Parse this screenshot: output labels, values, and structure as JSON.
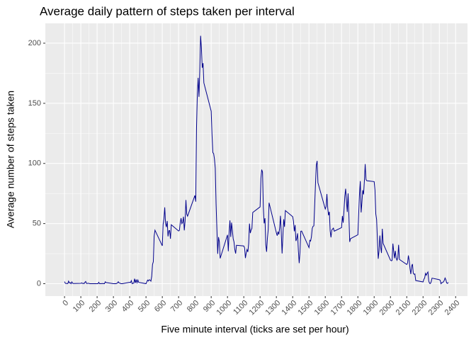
{
  "chart_data": {
    "type": "line",
    "title": "Average daily pattern of steps taken per interval",
    "x_label": "Five minute interval (ticks are set per hour)",
    "y_label": "Average number of steps taken",
    "color": "#00008B",
    "grid": true,
    "xlim": [
      -117.75,
      2472.75
    ],
    "ylim": [
      -10.31,
      216.48
    ],
    "xticks": [
      0,
      100,
      200,
      300,
      400,
      500,
      600,
      700,
      800,
      900,
      1000,
      1100,
      1200,
      1300,
      1400,
      1500,
      1600,
      1700,
      1800,
      1900,
      2000,
      2100,
      2200,
      2300,
      2400
    ],
    "yticks": [
      0,
      50,
      100,
      150,
      200
    ],
    "x": [
      0,
      5,
      10,
      15,
      20,
      25,
      30,
      35,
      40,
      45,
      50,
      55,
      100,
      105,
      110,
      115,
      120,
      125,
      130,
      135,
      140,
      145,
      150,
      155,
      200,
      205,
      210,
      215,
      220,
      225,
      230,
      235,
      240,
      245,
      250,
      255,
      300,
      305,
      310,
      315,
      320,
      325,
      330,
      335,
      340,
      345,
      350,
      355,
      400,
      405,
      410,
      415,
      420,
      425,
      430,
      435,
      440,
      445,
      450,
      455,
      500,
      505,
      510,
      515,
      520,
      525,
      530,
      535,
      540,
      545,
      550,
      555,
      600,
      605,
      610,
      615,
      620,
      625,
      630,
      635,
      640,
      645,
      650,
      655,
      700,
      705,
      710,
      715,
      720,
      725,
      730,
      735,
      740,
      745,
      750,
      755,
      800,
      805,
      810,
      815,
      820,
      825,
      830,
      835,
      840,
      845,
      850,
      855,
      900,
      905,
      910,
      915,
      920,
      925,
      930,
      935,
      940,
      945,
      950,
      955,
      1000,
      1005,
      1010,
      1015,
      1020,
      1025,
      1030,
      1035,
      1040,
      1045,
      1050,
      1055,
      1100,
      1105,
      1110,
      1115,
      1120,
      1125,
      1130,
      1135,
      1140,
      1145,
      1150,
      1155,
      1200,
      1205,
      1210,
      1215,
      1220,
      1225,
      1230,
      1235,
      1240,
      1245,
      1250,
      1255,
      1300,
      1305,
      1310,
      1315,
      1320,
      1325,
      1330,
      1335,
      1340,
      1345,
      1350,
      1355,
      1400,
      1405,
      1410,
      1415,
      1420,
      1425,
      1430,
      1435,
      1440,
      1445,
      1450,
      1455,
      1500,
      1505,
      1510,
      1515,
      1520,
      1525,
      1530,
      1535,
      1540,
      1545,
      1550,
      1555,
      1600,
      1605,
      1610,
      1615,
      1620,
      1625,
      1630,
      1635,
      1640,
      1645,
      1650,
      1655,
      1700,
      1705,
      1710,
      1715,
      1720,
      1725,
      1730,
      1735,
      1740,
      1745,
      1750,
      1755,
      1800,
      1805,
      1810,
      1815,
      1820,
      1825,
      1830,
      1835,
      1840,
      1845,
      1850,
      1855,
      1900,
      1905,
      1910,
      1915,
      1920,
      1925,
      1930,
      1935,
      1940,
      1945,
      1950,
      1955,
      2000,
      2005,
      2010,
      2015,
      2020,
      2025,
      2030,
      2035,
      2040,
      2045,
      2050,
      2055,
      2100,
      2105,
      2110,
      2115,
      2120,
      2125,
      2130,
      2135,
      2140,
      2145,
      2150,
      2155,
      2200,
      2205,
      2210,
      2215,
      2220,
      2225,
      2230,
      2235,
      2240,
      2245,
      2250,
      2255,
      2300,
      2305,
      2310,
      2315,
      2320,
      2325,
      2330,
      2335,
      2340,
      2345,
      2350,
      2355
    ],
    "values": [
      1.72,
      0.34,
      0.13,
      0.15,
      0.08,
      2.09,
      0.53,
      0.87,
      0,
      1.47,
      0.3,
      0.13,
      0.32,
      0.68,
      0.15,
      0.34,
      0,
      1.11,
      1.83,
      0.17,
      0.23,
      0.38,
      0.26,
      0,
      0,
      0,
      1.13,
      0,
      0,
      0.13,
      0,
      0.23,
      0,
      0,
      1.55,
      0.94,
      0,
      0,
      0,
      0,
      0.21,
      0.62,
      1.62,
      0.58,
      0.49,
      0.08,
      0,
      0,
      1.19,
      0.94,
      2.57,
      0,
      0.34,
      0.36,
      4.11,
      0.66,
      3.49,
      0.83,
      3.11,
      1.11,
      0,
      1.57,
      3.0,
      2.25,
      3.32,
      2.96,
      2.09,
      6.05,
      16.02,
      18.34,
      39.45,
      44.49,
      31.49,
      49.26,
      53.77,
      63.45,
      49.96,
      47.08,
      52.15,
      39.34,
      44.02,
      44.17,
      37.36,
      49.04,
      43.81,
      44.38,
      50.51,
      54.51,
      49.92,
      50.98,
      55.68,
      44.32,
      52.26,
      69.55,
      57.85,
      56.15,
      73.38,
      68.21,
      129.43,
      157.53,
      171.15,
      155.4,
      177.3,
      206.17,
      195.92,
      179.57,
      183.4,
      167.02,
      143.45,
      124.04,
      109.11,
      108.11,
      103.72,
      95.97,
      66.21,
      45.23,
      24.79,
      38.75,
      34.98,
      21.06,
      40.57,
      26.98,
      42.42,
      52.66,
      38.92,
      50.79,
      44.28,
      37.42,
      34.7,
      28.34,
      25.09,
      31.94,
      31.36,
      29.68,
      21.32,
      25.55,
      28.38,
      26.47,
      33.43,
      49.98,
      42.04,
      44.6,
      46.04,
      59.19,
      63.87,
      87.7,
      94.85,
      92.77,
      63.4,
      50.17,
      54.47,
      32.42,
      26.53,
      37.74,
      45.06,
      67.28,
      42.34,
      39.88,
      43.26,
      40.98,
      46.25,
      56.43,
      42.75,
      25.13,
      39.96,
      53.55,
      47.32,
      60.81,
      55.75,
      51.96,
      43.58,
      48.7,
      35.47,
      37.55,
      41.85,
      27.51,
      17.11,
      26.08,
      43.62,
      43.77,
      30.02,
      36.08,
      35.49,
      38.85,
      45.96,
      47.75,
      48.13,
      65.32,
      82.91,
      98.66,
      102.11,
      83.96,
      62.13,
      64.13,
      74.55,
      63.17,
      56.91,
      59.77,
      43.87,
      38.57,
      44.66,
      45.45,
      46.21,
      43.68,
      46.62,
      56.3,
      50.72,
      61.23,
      72.72,
      78.94,
      68.94,
      59.66,
      75.09,
      56.51,
      34.77,
      37.45,
      40.68,
      58.02,
      74.7,
      85.32,
      59.26,
      67.77,
      77.7,
      74.25,
      85.34,
      99.45,
      86.58,
      85.6,
      84.87,
      77.83,
      58.04,
      53.36,
      36.32,
      20.72,
      27.4,
      40.02,
      30.21,
      25.55,
      45.66,
      33.53,
      19.62,
      19.02,
      19.34,
      33.34,
      26.81,
      21.17,
      27.3,
      21.34,
      19.55,
      21.32,
      32.3,
      20.15,
      15.94,
      17.23,
      23.45,
      19.25,
      12.45,
      8.02,
      14.66,
      16.3,
      8.68,
      7.79,
      8.13,
      2.62,
      1.45,
      3.68,
      4.81,
      8.51,
      7.08,
      8.7,
      9.75,
      2.21,
      0.32,
      0.11,
      1.6,
      4.6,
      3.3,
      2.85,
      0,
      0.83,
      0.96,
      1.58,
      2.6,
      4.7,
      3.3,
      0.64,
      0.23,
      1.08
    ]
  }
}
